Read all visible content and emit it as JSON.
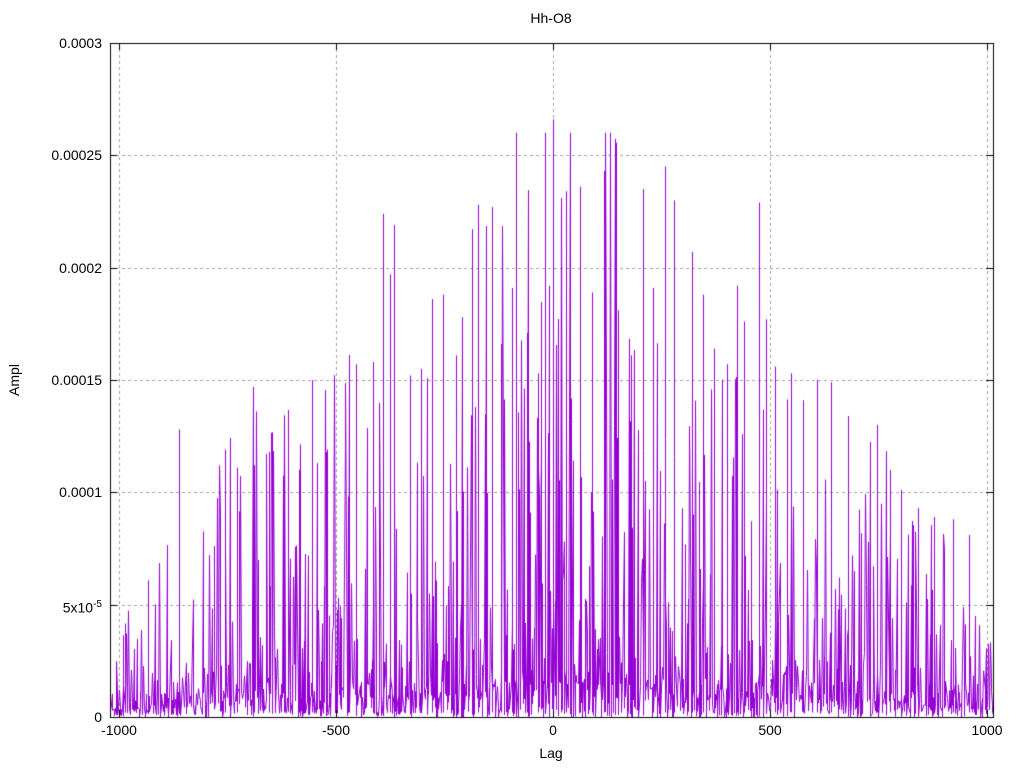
{
  "window": {
    "background": "#ffffff"
  },
  "chart_data": {
    "type": "line",
    "style": "dense noisy amplitude trace (gnuplot-style autocorrelation)",
    "title": "Hh-O8",
    "xlabel": "Lag",
    "ylabel": "Ampl",
    "xlim": [
      -1021,
      1013
    ],
    "ylim": [
      0,
      0.0003
    ],
    "xticks": {
      "values": [
        -1000,
        -500,
        0,
        500,
        1000
      ],
      "labels": [
        "-1000",
        "-500",
        "0",
        "500",
        "1000"
      ]
    },
    "yticks": {
      "values": [
        0,
        5e-05,
        0.0001,
        0.00015,
        0.0002,
        0.00025,
        0.0003
      ],
      "labels": [
        "0",
        "5x10^-5",
        "0.0001",
        "0.00015",
        "0.0002",
        "0.00025",
        "0.0003"
      ]
    },
    "grid": {
      "enabled": true,
      "color": "#a3a3a3",
      "dash": [
        3,
        3
      ]
    },
    "axes": {
      "border_color": "#000000",
      "tick_length": 7,
      "legend": "none"
    },
    "series": [
      {
        "name": "Hh-O8",
        "color": "#9400D3",
        "noise_model": {
          "seed": 1337,
          "points": 1000,
          "envelope_edge": 6.2e-05,
          "envelope_center": 0.000278,
          "envelope_power": 1.15,
          "skew_power": 3.4,
          "min_ratio": 0.05,
          "max_value": 0.00026
        },
        "notable_peaks": [
          [
            -862,
            0.000128
          ],
          [
            -756,
            0.000119
          ],
          [
            -728,
            0.000111
          ],
          [
            -690,
            0.000112
          ],
          [
            -655,
            0.000118
          ],
          [
            -620,
            0.000134
          ],
          [
            -585,
            0.00011
          ],
          [
            -555,
            0.00015
          ],
          [
            -520,
            0.000119
          ],
          [
            -470,
            0.000136
          ],
          [
            -455,
            0.000157
          ],
          [
            -415,
            0.000158
          ],
          [
            -391,
            0.000224
          ],
          [
            -375,
            0.000197
          ],
          [
            -366,
            0.000219
          ],
          [
            -330,
            0.000152
          ],
          [
            -305,
            0.000155
          ],
          [
            -280,
            0.000186
          ],
          [
            -255,
            0.000188
          ],
          [
            -225,
            0.000161
          ],
          [
            -174,
            0.000228
          ],
          [
            -142,
            0.000227
          ],
          [
            -120,
            0.000166
          ],
          [
            -95,
            0.000191
          ],
          [
            -60,
            0.000171
          ],
          [
            -35,
            0.000153
          ],
          [
            0,
            0.000266
          ],
          [
            18,
            0.000201
          ],
          [
            30,
            0.000234
          ],
          [
            62,
            0.000236
          ],
          [
            90,
            0.000189
          ],
          [
            117,
            0.000243
          ],
          [
            150,
            0.000181
          ],
          [
            178,
            0.000161
          ],
          [
            206,
            0.000235
          ],
          [
            230,
            0.000191
          ],
          [
            258,
            0.000245
          ],
          [
            279,
            0.00023
          ],
          [
            320,
            0.000207
          ],
          [
            345,
            0.000188
          ],
          [
            370,
            0.000164
          ],
          [
            400,
            0.000157
          ],
          [
            423,
            0.000192
          ],
          [
            440,
            0.000176
          ],
          [
            474,
            0.000229
          ],
          [
            490,
            0.000177
          ],
          [
            510,
            0.000156
          ],
          [
            548,
            0.000153
          ],
          [
            575,
            0.000141
          ],
          [
            608,
            0.00015
          ],
          [
            640,
            0.000149
          ],
          [
            680,
            0.000134
          ],
          [
            746,
            0.00013
          ],
          [
            775,
            0.00011
          ],
          [
            800,
            0.000101
          ],
          [
            840,
            9.3e-05
          ],
          [
            878,
            8.9e-05
          ],
          [
            920,
            8.8e-05
          ],
          [
            958,
            8.1e-05
          ]
        ]
      }
    ]
  }
}
